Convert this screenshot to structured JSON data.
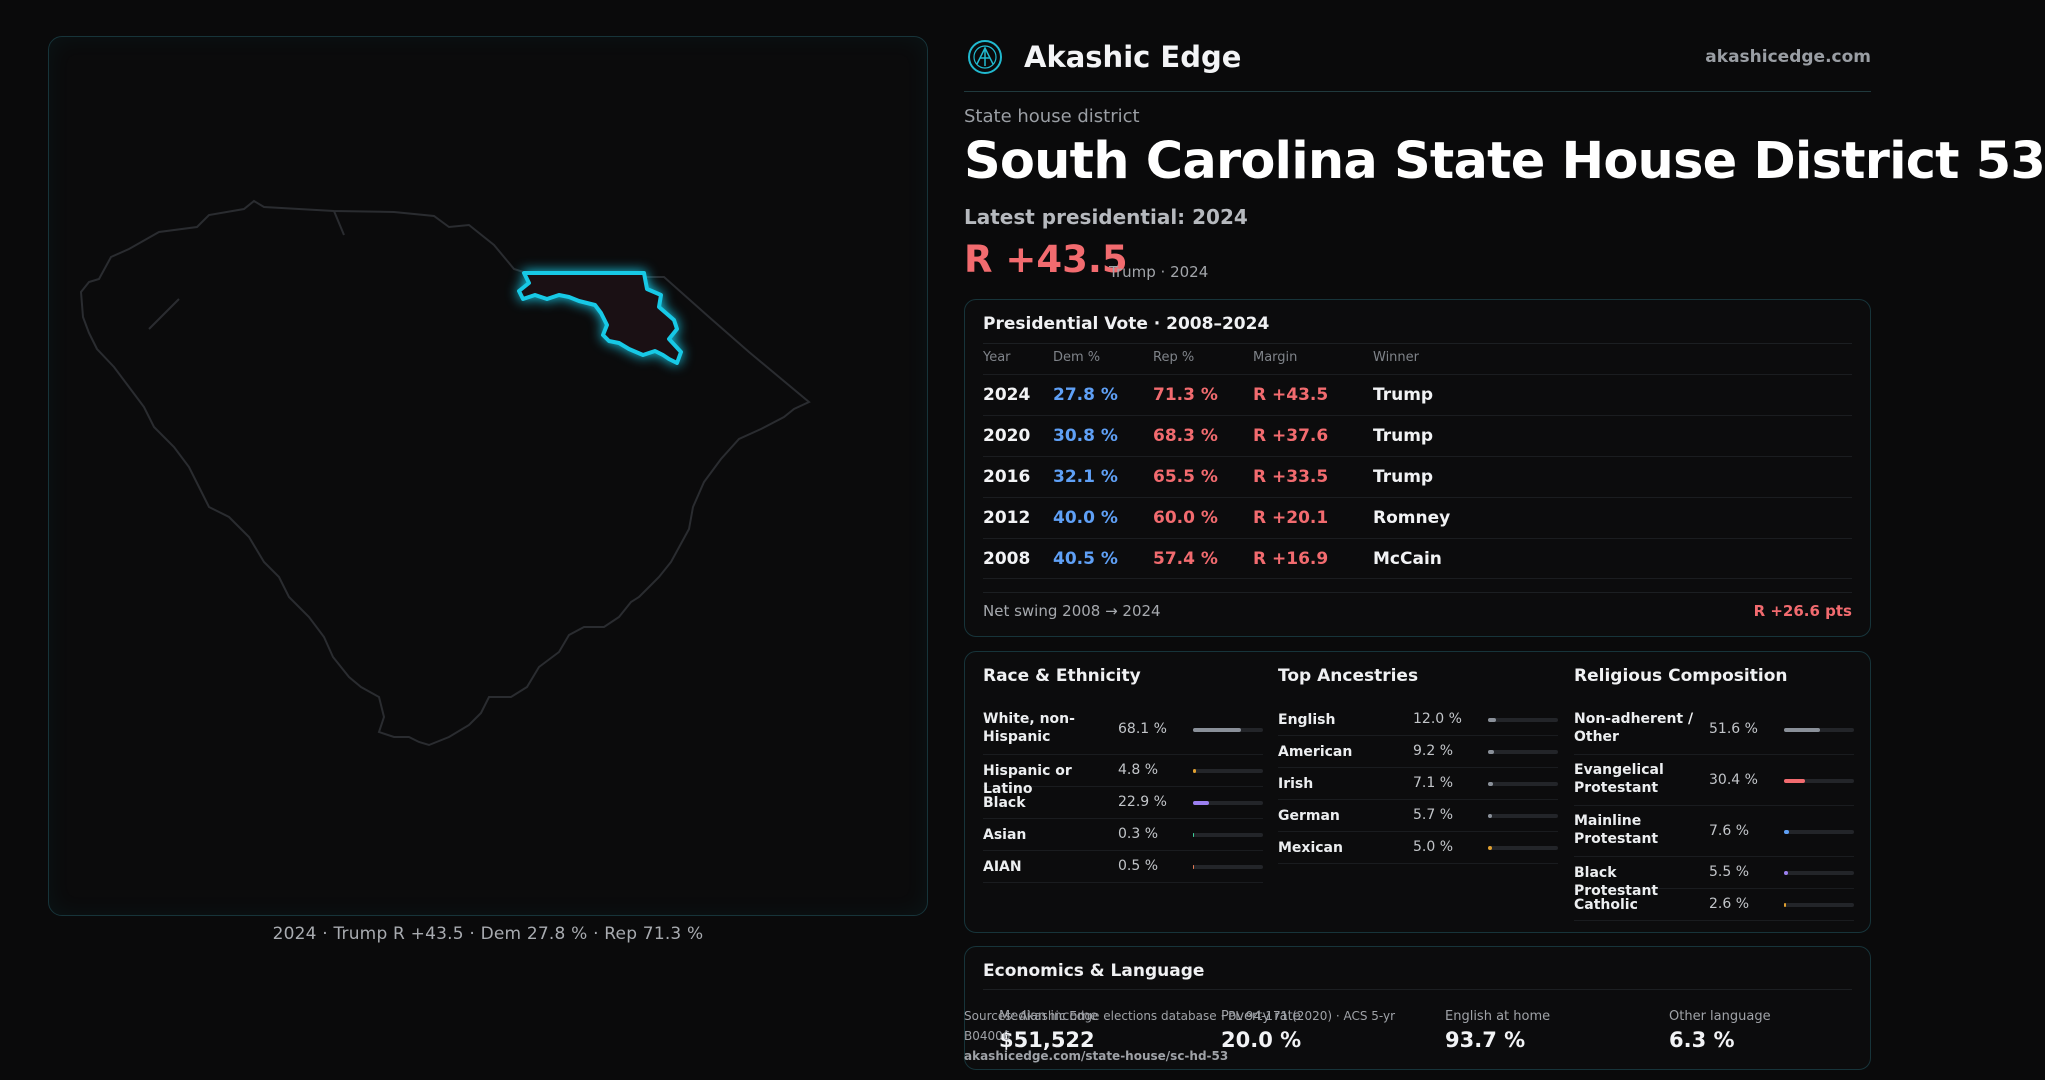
{
  "brand": {
    "name": "Akashic Edge",
    "url": "akashicedge.com"
  },
  "kicker": "State house district",
  "title": "South Carolina State House District 53",
  "latest": "Latest presidential: 2024",
  "margin_big": "R +43.5",
  "margin_sub": "Trump · 2024",
  "map_caption": "2024 · Trump R +43.5 · Dem 27.8 % · Rep 71.3 %",
  "presidential": {
    "title": "Presidential Vote · 2008–2024",
    "headers": [
      "Year",
      "Dem %",
      "Rep %",
      "Margin",
      "Winner"
    ],
    "rows": [
      {
        "year": "2024",
        "dem": "27.8 %",
        "rep": "71.3 %",
        "margin": "R +43.5",
        "winner": "Trump"
      },
      {
        "year": "2020",
        "dem": "30.8 %",
        "rep": "68.3 %",
        "margin": "R +37.6",
        "winner": "Trump"
      },
      {
        "year": "2016",
        "dem": "32.1 %",
        "rep": "65.5 %",
        "margin": "R +33.5",
        "winner": "Trump"
      },
      {
        "year": "2012",
        "dem": "40.0 %",
        "rep": "60.0 %",
        "margin": "R +20.1",
        "winner": "Romney"
      },
      {
        "year": "2008",
        "dem": "40.5 %",
        "rep": "57.4 %",
        "margin": "R +16.9",
        "winner": "McCain"
      }
    ],
    "swing_label": "Net swing 2008 → 2024",
    "swing_value": "R +26.6 pts"
  },
  "race": {
    "title": "Race & Ethnicity",
    "items": [
      {
        "label": "White, non-Hispanic",
        "value": "68.1 %",
        "pct": 68.1,
        "color": "#8a9099"
      },
      {
        "label": "Hispanic or Latino",
        "value": "4.8 %",
        "pct": 4.8,
        "color": "#e0a030"
      },
      {
        "label": "Black",
        "value": "22.9 %",
        "pct": 22.9,
        "color": "#9b7ff0"
      },
      {
        "label": "Asian",
        "value": "0.3 %",
        "pct": 0.3,
        "color": "#3ccf9a"
      },
      {
        "label": "AIAN",
        "value": "0.5 %",
        "pct": 0.5,
        "color": "#e07a55"
      }
    ]
  },
  "ancestry": {
    "title": "Top Ancestries",
    "items": [
      {
        "label": "English",
        "value": "12.0 %",
        "pct": 12.0,
        "color": "#8a9099"
      },
      {
        "label": "American",
        "value": "9.2 %",
        "pct": 9.2,
        "color": "#8a9099"
      },
      {
        "label": "Irish",
        "value": "7.1 %",
        "pct": 7.1,
        "color": "#8a9099"
      },
      {
        "label": "German",
        "value": "5.7 %",
        "pct": 5.7,
        "color": "#8a9099"
      },
      {
        "label": "Mexican",
        "value": "5.0 %",
        "pct": 5.0,
        "color": "#e0a030"
      }
    ]
  },
  "religion": {
    "title": "Religious Composition",
    "items": [
      {
        "label": "Non-adherent / Other",
        "value": "51.6 %",
        "pct": 51.6,
        "color": "#8a9099"
      },
      {
        "label": "Evangelical Protestant",
        "value": "30.4 %",
        "pct": 30.4,
        "color": "#f26b6f"
      },
      {
        "label": "Mainline Protestant",
        "value": "7.6 %",
        "pct": 7.6,
        "color": "#5fa0f6"
      },
      {
        "label": "Black Protestant",
        "value": "5.5 %",
        "pct": 5.5,
        "color": "#9b7ff0"
      },
      {
        "label": "Catholic",
        "value": "2.6 %",
        "pct": 2.6,
        "color": "#e0a030"
      }
    ]
  },
  "econ": {
    "title": "Economics & Language",
    "stats": [
      {
        "label": "Median income",
        "value": "$51,522"
      },
      {
        "label": "Poverty rate",
        "value": "20.0 %"
      },
      {
        "label": "English at home",
        "value": "93.7 %"
      },
      {
        "label": "Other language",
        "value": "6.3 %"
      }
    ]
  },
  "source": {
    "line1": "Sources: Akashic Edge elections database · PL 94-171 (2020) · ACS 5-yr B04006",
    "line2": "akashicedge.com/state-house/sc-hd-53"
  }
}
